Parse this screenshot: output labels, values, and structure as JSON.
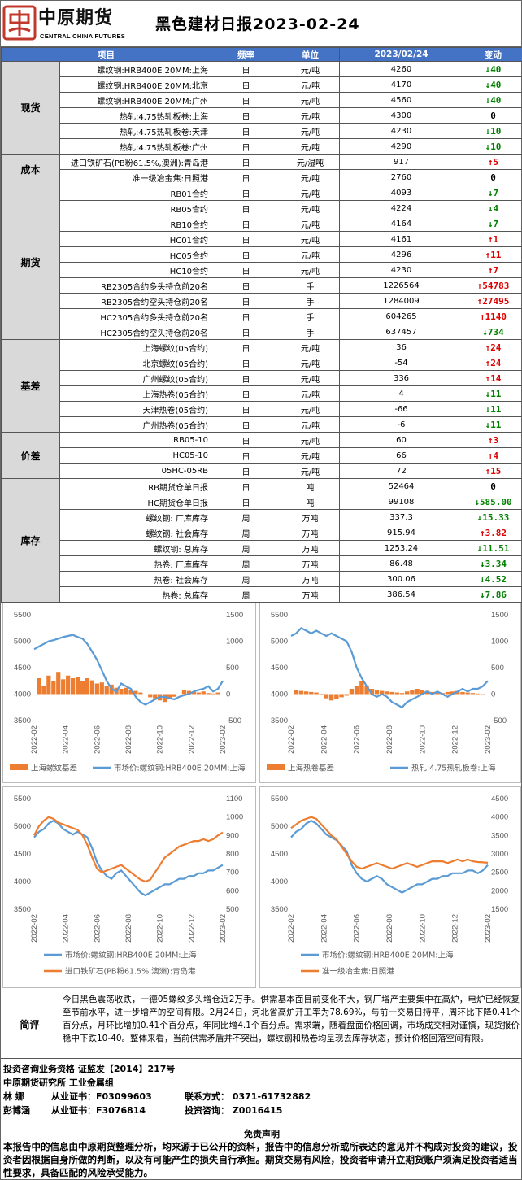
{
  "header": {
    "logo_text": "中原期货",
    "logo_sub": "CENTRAL CHINA FUTURES",
    "title": "黑色建材日报2023-02-24",
    "logo_color": "#c0392b"
  },
  "table": {
    "columns": [
      "项目",
      "频率",
      "单位",
      "2023/02/24",
      "变动"
    ],
    "header_color": "#4472c4",
    "groups": [
      {
        "category": "现货",
        "rows": [
          {
            "name": "螺纹钢:HRB400E 20MM:上海",
            "freq": "日",
            "unit": "元/吨",
            "value": "4260",
            "dir": "down",
            "change": "40"
          },
          {
            "name": "螺纹钢:HRB400E 20MM:北京",
            "freq": "日",
            "unit": "元/吨",
            "value": "4170",
            "dir": "down",
            "change": "40"
          },
          {
            "name": "螺纹钢:HRB400E 20MM:广州",
            "freq": "日",
            "unit": "元/吨",
            "value": "4560",
            "dir": "down",
            "change": "40"
          },
          {
            "name": "热轧:4.75热轧板卷:上海",
            "freq": "日",
            "unit": "元/吨",
            "value": "4300",
            "dir": "flat",
            "change": "0"
          },
          {
            "name": "热轧:4.75热轧板卷:天津",
            "freq": "日",
            "unit": "元/吨",
            "value": "4230",
            "dir": "down",
            "change": "10"
          },
          {
            "name": "热轧:4.75热轧板卷:广州",
            "freq": "日",
            "unit": "元/吨",
            "value": "4290",
            "dir": "down",
            "change": "10"
          }
        ]
      },
      {
        "category": "成本",
        "rows": [
          {
            "name": "进口铁矿石(PB粉61.5%,澳洲):青岛港",
            "freq": "日",
            "unit": "元/湿吨",
            "value": "917",
            "dir": "up",
            "change": "5"
          },
          {
            "name": "准一级冶金焦:日照港",
            "freq": "日",
            "unit": "元/吨",
            "value": "2760",
            "dir": "flat",
            "change": "0"
          }
        ]
      },
      {
        "category": "期货",
        "rows": [
          {
            "name": "RB01合约",
            "freq": "日",
            "unit": "元/吨",
            "value": "4093",
            "dir": "down",
            "change": "7"
          },
          {
            "name": "RB05合约",
            "freq": "日",
            "unit": "元/吨",
            "value": "4224",
            "dir": "down",
            "change": "4"
          },
          {
            "name": "RB10合约",
            "freq": "日",
            "unit": "元/吨",
            "value": "4164",
            "dir": "down",
            "change": "7"
          },
          {
            "name": "HC01合约",
            "freq": "日",
            "unit": "元/吨",
            "value": "4161",
            "dir": "up",
            "change": "1"
          },
          {
            "name": "HC05合约",
            "freq": "日",
            "unit": "元/吨",
            "value": "4296",
            "dir": "up",
            "change": "11"
          },
          {
            "name": "HC10合约",
            "freq": "日",
            "unit": "元/吨",
            "value": "4230",
            "dir": "up",
            "change": "7"
          },
          {
            "name": "RB2305合约多头持仓前20名",
            "freq": "日",
            "unit": "手",
            "value": "1226564",
            "dir": "up",
            "change": "54783"
          },
          {
            "name": "RB2305合约空头持仓前20名",
            "freq": "日",
            "unit": "手",
            "value": "1284009",
            "dir": "up",
            "change": "27495"
          },
          {
            "name": "HC2305合约多头持仓前20名",
            "freq": "日",
            "unit": "手",
            "value": "604265",
            "dir": "up",
            "change": "1140"
          },
          {
            "name": "HC2305合约空头持仓前20名",
            "freq": "日",
            "unit": "手",
            "value": "637457",
            "dir": "down",
            "change": "734"
          }
        ]
      },
      {
        "category": "基差",
        "rows": [
          {
            "name": "上海螺纹(05合约)",
            "freq": "日",
            "unit": "元/吨",
            "value": "36",
            "dir": "up",
            "change": "24"
          },
          {
            "name": "北京螺纹(05合约)",
            "freq": "日",
            "unit": "元/吨",
            "value": "-54",
            "dir": "up",
            "change": "24"
          },
          {
            "name": "广州螺纹(05合约)",
            "freq": "日",
            "unit": "元/吨",
            "value": "336",
            "dir": "up",
            "change": "14"
          },
          {
            "name": "上海热卷(05合约)",
            "freq": "日",
            "unit": "元/吨",
            "value": "4",
            "dir": "down",
            "change": "11"
          },
          {
            "name": "天津热卷(05合约)",
            "freq": "日",
            "unit": "元/吨",
            "value": "-66",
            "dir": "down",
            "change": "11"
          },
          {
            "name": "广州热卷(05合约)",
            "freq": "日",
            "unit": "元/吨",
            "value": "-6",
            "dir": "down",
            "change": "11"
          }
        ]
      },
      {
        "category": "价差",
        "rows": [
          {
            "name": "RB05-10",
            "freq": "日",
            "unit": "元/吨",
            "value": "60",
            "dir": "up",
            "change": "3"
          },
          {
            "name": "HC05-10",
            "freq": "日",
            "unit": "元/吨",
            "value": "66",
            "dir": "up",
            "change": "4"
          },
          {
            "name": "05HC-05RB",
            "freq": "日",
            "unit": "元/吨",
            "value": "72",
            "dir": "up",
            "change": "15"
          }
        ]
      },
      {
        "category": "库存",
        "rows": [
          {
            "name": "RB期货仓单日报",
            "freq": "日",
            "unit": "吨",
            "value": "52464",
            "dir": "flat",
            "change": "0"
          },
          {
            "name": "HC期货仓单日报",
            "freq": "日",
            "unit": "吨",
            "value": "99108",
            "dir": "down",
            "change": "585.00"
          },
          {
            "name": "螺纹钢: 厂库库存",
            "freq": "周",
            "unit": "万吨",
            "value": "337.3",
            "dir": "down",
            "change": "15.33"
          },
          {
            "name": "螺纹钢: 社会库存",
            "freq": "周",
            "unit": "万吨",
            "value": "915.94",
            "dir": "up",
            "change": "3.82"
          },
          {
            "name": "螺纹钢: 总库存",
            "freq": "周",
            "unit": "万吨",
            "value": "1253.24",
            "dir": "down",
            "change": "11.51"
          },
          {
            "name": "热卷: 厂库库存",
            "freq": "周",
            "unit": "万吨",
            "value": "86.48",
            "dir": "down",
            "change": "3.34"
          },
          {
            "name": "热卷: 社会库存",
            "freq": "周",
            "unit": "万吨",
            "value": "300.06",
            "dir": "down",
            "change": "4.52"
          },
          {
            "name": "热卷: 总库存",
            "freq": "周",
            "unit": "万吨",
            "value": "386.54",
            "dir": "down",
            "change": "7.86"
          }
        ]
      }
    ],
    "up_color": "#e00000",
    "down_color": "#008000"
  },
  "chart_data": [
    {
      "type": "line",
      "x_ticks": [
        "2022-02",
        "2022-04",
        "2022-06",
        "2022-08",
        "2022-10",
        "2022-12",
        "2023-02"
      ],
      "ylim_left": [
        3500,
        5500
      ],
      "yticks_left": [
        "5500",
        "5000",
        "4500",
        "4000",
        "3500"
      ],
      "ylim_right": [
        -500,
        1500
      ],
      "yticks_right": [
        "1500",
        "1000",
        "500",
        "0",
        "-500"
      ],
      "series": [
        {
          "name": "上海螺纹基差",
          "kind": "area",
          "axis": "right",
          "color": "#ed7d31",
          "values": [
            0,
            300,
            150,
            350,
            250,
            420,
            280,
            350,
            300,
            320,
            250,
            300,
            260,
            200,
            220,
            150,
            180,
            120,
            100,
            120,
            80,
            60,
            30,
            0,
            -60,
            -80,
            -120,
            -150,
            -100,
            -50,
            0,
            80,
            60,
            40,
            30,
            50,
            20,
            10,
            30,
            0
          ]
        },
        {
          "name": "市场价:螺纹钢:HRB400E 20MM:上海",
          "kind": "line",
          "axis": "left",
          "color": "#5b9bd5",
          "values": [
            4850,
            4900,
            4950,
            5000,
            5020,
            5050,
            5080,
            5100,
            5120,
            5080,
            5050,
            4950,
            4800,
            4650,
            4450,
            4250,
            4100,
            4050,
            4200,
            4150,
            4100,
            3950,
            3850,
            3800,
            3850,
            3900,
            3950,
            3950,
            3920,
            3900,
            3950,
            3980,
            4000,
            4050,
            4080,
            4100,
            4150,
            4050,
            4100,
            4250
          ]
        }
      ]
    },
    {
      "type": "line",
      "x_ticks": [
        "2022-02",
        "2022-04",
        "2022-06",
        "2022-08",
        "2022-10",
        "2022-12",
        "2023-02"
      ],
      "ylim_left": [
        3500,
        5500
      ],
      "yticks_left": [
        "5500",
        "5000",
        "4500",
        "4000",
        "3500"
      ],
      "ylim_right": [
        -500,
        1500
      ],
      "yticks_right": [
        "1500",
        "1000",
        "500",
        "0",
        "-500"
      ],
      "series": [
        {
          "name": "上海热卷基差",
          "kind": "area",
          "axis": "right",
          "color": "#ed7d31",
          "values": [
            0,
            80,
            60,
            50,
            40,
            30,
            -20,
            -80,
            -120,
            -100,
            -60,
            -30,
            100,
            150,
            250,
            150,
            100,
            80,
            60,
            50,
            40,
            30,
            20,
            50,
            80,
            100,
            80,
            60,
            40,
            30,
            20,
            40,
            50,
            60,
            40,
            30,
            20,
            10,
            5,
            0
          ]
        },
        {
          "name": "热轧:4.75热轧板卷:上海",
          "kind": "line",
          "axis": "left",
          "color": "#5b9bd5",
          "values": [
            5100,
            5150,
            5250,
            5200,
            5150,
            5200,
            5150,
            5100,
            5150,
            5100,
            5050,
            5000,
            4800,
            4500,
            4300,
            4150,
            4000,
            3950,
            4000,
            3950,
            3850,
            3800,
            3750,
            3850,
            3900,
            3950,
            4000,
            4050,
            4000,
            4050,
            4000,
            3950,
            4000,
            4050,
            4100,
            4050,
            4100,
            4100,
            4150,
            4250
          ]
        }
      ]
    },
    {
      "type": "line",
      "x_ticks": [
        "2022-02",
        "2022-04",
        "2022-06",
        "2022-08",
        "2022-10",
        "2022-12",
        "2023-02"
      ],
      "ylim_left": [
        3500,
        5500
      ],
      "yticks_left": [
        "5500",
        "5000",
        "4500",
        "4000",
        "3500"
      ],
      "ylim_right": [
        500,
        1100
      ],
      "yticks_right": [
        "1100",
        "1000",
        "900",
        "800",
        "700",
        "600",
        "500"
      ],
      "series": [
        {
          "name": "市场价:螺纹钢:HRB400E 20MM:上海",
          "kind": "line",
          "axis": "left",
          "color": "#5b9bd5",
          "values": [
            4800,
            4900,
            4950,
            5050,
            5100,
            5050,
            4950,
            4900,
            4850,
            4900,
            4850,
            4800,
            4600,
            4350,
            4200,
            4100,
            4050,
            4150,
            4200,
            4100,
            4000,
            3900,
            3800,
            3750,
            3800,
            3850,
            3900,
            3950,
            3950,
            4000,
            4050,
            4050,
            4100,
            4100,
            4150,
            4150,
            4200,
            4200,
            4250,
            4300
          ]
        },
        {
          "name": "进口铁矿石(PB粉61.5%,澳洲):青岛港",
          "kind": "line",
          "axis": "right",
          "color": "#ed7d31",
          "values": [
            900,
            950,
            980,
            1000,
            990,
            970,
            960,
            950,
            940,
            930,
            900,
            850,
            780,
            720,
            700,
            710,
            720,
            730,
            740,
            720,
            700,
            680,
            660,
            650,
            660,
            700,
            740,
            780,
            800,
            820,
            840,
            850,
            860,
            870,
            870,
            880,
            870,
            880,
            900,
            917
          ]
        }
      ]
    },
    {
      "type": "line",
      "x_ticks": [
        "2022-02",
        "2022-04",
        "2022-06",
        "2022-08",
        "2022-10",
        "2022-12",
        "2023-02"
      ],
      "ylim_left": [
        3500,
        5500
      ],
      "yticks_left": [
        "5500",
        "5000",
        "4500",
        "4000",
        "3500"
      ],
      "ylim_right": [
        1500,
        4500
      ],
      "yticks_right": [
        "4500",
        "4000",
        "3500",
        "3000",
        "2500",
        "2000",
        "1500"
      ],
      "series": [
        {
          "name": "市场价:螺纹钢:HRB400E 20MM:上海",
          "kind": "line",
          "axis": "left",
          "color": "#5b9bd5",
          "values": [
            4800,
            4900,
            4950,
            5050,
            5100,
            5050,
            4950,
            4850,
            4800,
            4750,
            4650,
            4550,
            4300,
            4150,
            4050,
            4000,
            4050,
            4100,
            4050,
            3950,
            3900,
            3850,
            3800,
            3850,
            3900,
            3950,
            3950,
            4000,
            4050,
            4050,
            4100,
            4100,
            4150,
            4150,
            4150,
            4200,
            4200,
            4150,
            4200,
            4300
          ]
        },
        {
          "name": "准一级冶金焦:日照港",
          "kind": "line",
          "axis": "right",
          "color": "#ed7d31",
          "values": [
            3700,
            3800,
            3900,
            3950,
            4000,
            3950,
            3800,
            3650,
            3500,
            3400,
            3200,
            3000,
            2800,
            2650,
            2600,
            2650,
            2700,
            2750,
            2700,
            2650,
            2600,
            2650,
            2700,
            2750,
            2700,
            2650,
            2700,
            2750,
            2800,
            2800,
            2800,
            2750,
            2800,
            2850,
            2800,
            2850,
            2800,
            2780,
            2770,
            2760
          ]
        }
      ]
    }
  ],
  "comment": {
    "label": "简评",
    "text": "今日黑色震荡收跌，一德05螺纹多头增仓近2万手。供需基本面目前变化不大，钢厂增产主要集中在高炉，电炉已经恢复至节前水平，进一步增产的空间有限。2月24日，河北省高炉开工率为78.69%，与前一交易日持平，周环比下降0.41个百分点，月环比增加0.41个百分点，年同比增4.1个百分点。需求端，随着盘面价格回调，市场成交相对谨慎，现货报价稳中下跌10-40。整体来看，当前供需矛盾并不突出，螺纹钢和热卷均呈现去库存状态，预计价格回落空间有限。"
  },
  "footer": {
    "qualification": "投资咨询业务资格   证监发【2014】217号",
    "dept": "中原期货研究所   工业金属组",
    "analyst1_name": "林  娜",
    "analyst1_cert": "从业证书：F03099603",
    "contact": "联系方式：  0371-61732882",
    "analyst2_name": "彭博涵",
    "analyst2_cert": "从业证书：F3076814",
    "advisory": "投资咨询：  Z0016415",
    "disclaimer_title": "免责声明",
    "disclaimer": "本报告中的信息由中原期货整理分析，均来源于已公开的资料，报告中的信息分析或所表达的意见并不构成对投资的建议，投资者因根据自身所做的判断，以及有可能产生的损失自行承担。期货交易有风险，投资者申请开立期货账户须满足投资者适当性要求，具备匹配的风险承受能力。"
  }
}
